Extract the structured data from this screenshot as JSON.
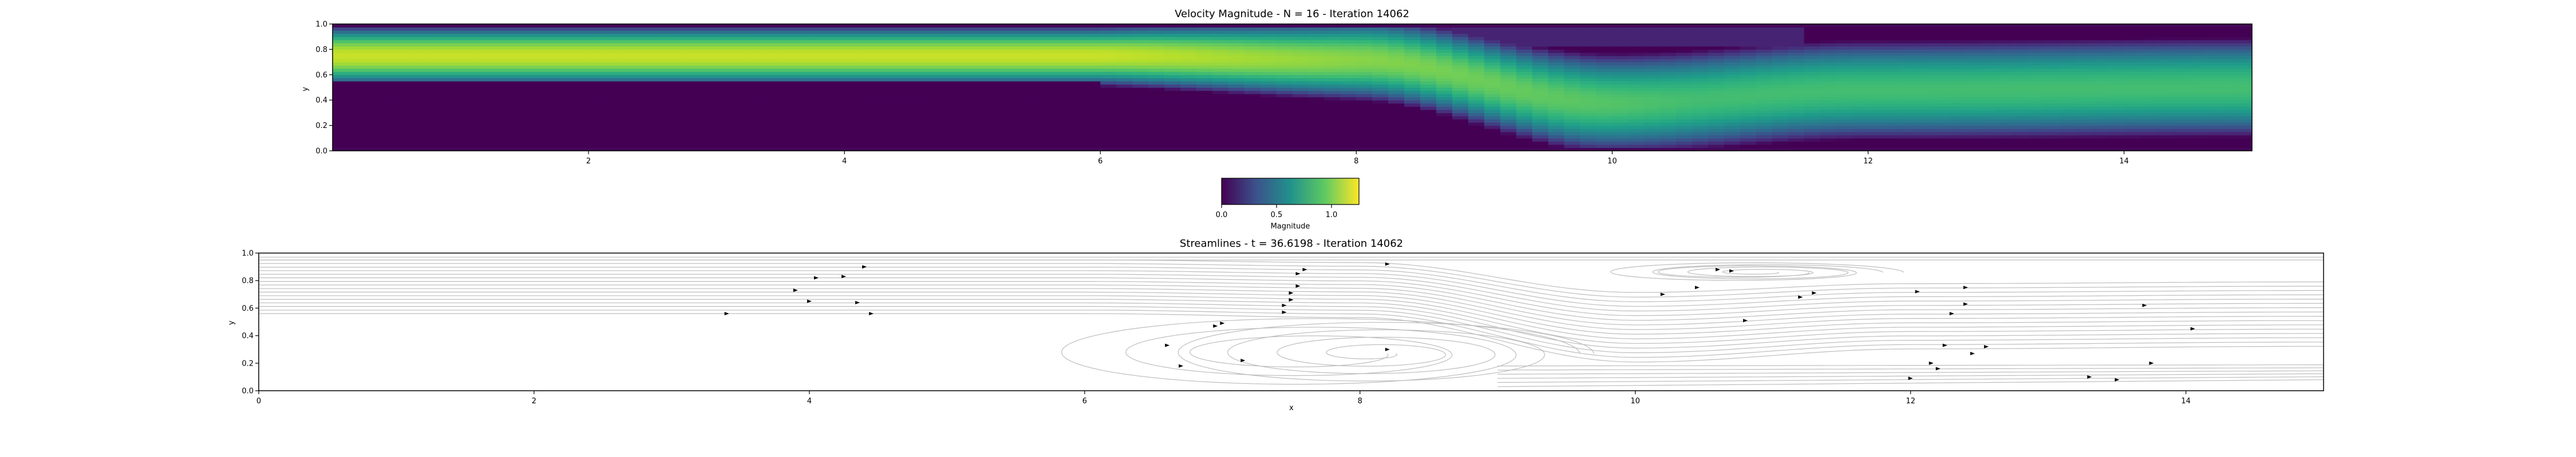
{
  "chart_data": [
    {
      "type": "heatmap",
      "title": "Velocity Magnitude - N = 16 - Iteration 14062",
      "xlabel": "",
      "ylabel": "y",
      "xlim": [
        0,
        15
      ],
      "ylim": [
        0,
        1
      ],
      "xticks": [
        "2",
        "4",
        "6",
        "8",
        "10",
        "12",
        "14"
      ],
      "yticks": [
        "0.0",
        "0.2",
        "0.4",
        "0.6",
        "0.8",
        "1.0"
      ],
      "colormap": "viridis",
      "colorbar": {
        "label": "Magnitude",
        "range": [
          0,
          1.25
        ],
        "ticks": [
          "0.0",
          "0.5",
          "1.0"
        ],
        "orientation": "horizontal"
      },
      "field_summary": {
        "inlet_jet": {
          "x_range": [
            0,
            6
          ],
          "y_range": [
            0.54,
            0.96
          ],
          "peak_value": 1.15
        },
        "recirculation_low": {
          "x_range": [
            0,
            6
          ],
          "y_range": [
            0,
            0.54
          ],
          "value": 0.0
        },
        "jet_center_profile": [
          [
            0,
            0.75
          ],
          [
            6,
            0.75
          ],
          [
            8,
            0.72
          ],
          [
            10,
            0.38
          ],
          [
            12,
            0.48
          ],
          [
            15,
            0.5
          ]
        ]
      }
    },
    {
      "type": "scatter",
      "title": "Streamlines - t = 36.6198 - Iteration 14062",
      "xlabel": "x",
      "ylabel": "y",
      "xlim": [
        0,
        15
      ],
      "ylim": [
        0,
        1
      ],
      "xticks": [
        "0",
        "2",
        "4",
        "6",
        "8",
        "10",
        "12",
        "14"
      ],
      "yticks": [
        "0.0",
        "0.2",
        "0.4",
        "0.6",
        "0.8",
        "1.0"
      ],
      "streamline_color": "#bdbdbd",
      "arrows": [
        [
          3.4,
          0.56
        ],
        [
          3.9,
          0.73
        ],
        [
          4.0,
          0.65
        ],
        [
          4.05,
          0.82
        ],
        [
          4.25,
          0.83
        ],
        [
          4.35,
          0.64
        ],
        [
          4.4,
          0.9
        ],
        [
          4.45,
          0.56
        ],
        [
          6.6,
          0.33
        ],
        [
          6.7,
          0.18
        ],
        [
          6.95,
          0.47
        ],
        [
          7.0,
          0.49
        ],
        [
          7.15,
          0.22
        ],
        [
          7.45,
          0.57
        ],
        [
          7.45,
          0.62
        ],
        [
          7.5,
          0.66
        ],
        [
          7.5,
          0.71
        ],
        [
          7.55,
          0.76
        ],
        [
          7.55,
          0.85
        ],
        [
          7.6,
          0.88
        ],
        [
          8.2,
          0.3
        ],
        [
          8.2,
          0.92
        ],
        [
          10.2,
          0.7
        ],
        [
          10.45,
          0.75
        ],
        [
          10.6,
          0.88
        ],
        [
          10.7,
          0.87
        ],
        [
          10.8,
          0.51
        ],
        [
          11.2,
          0.68
        ],
        [
          11.3,
          0.71
        ],
        [
          12.0,
          0.09
        ],
        [
          12.05,
          0.72
        ],
        [
          12.15,
          0.2
        ],
        [
          12.2,
          0.16
        ],
        [
          12.25,
          0.33
        ],
        [
          12.3,
          0.56
        ],
        [
          12.4,
          0.63
        ],
        [
          12.4,
          0.75
        ],
        [
          12.45,
          0.27
        ],
        [
          12.55,
          0.32
        ],
        [
          13.3,
          0.1
        ],
        [
          13.5,
          0.08
        ],
        [
          13.7,
          0.62
        ],
        [
          13.75,
          0.2
        ],
        [
          14.05,
          0.45
        ]
      ]
    }
  ]
}
